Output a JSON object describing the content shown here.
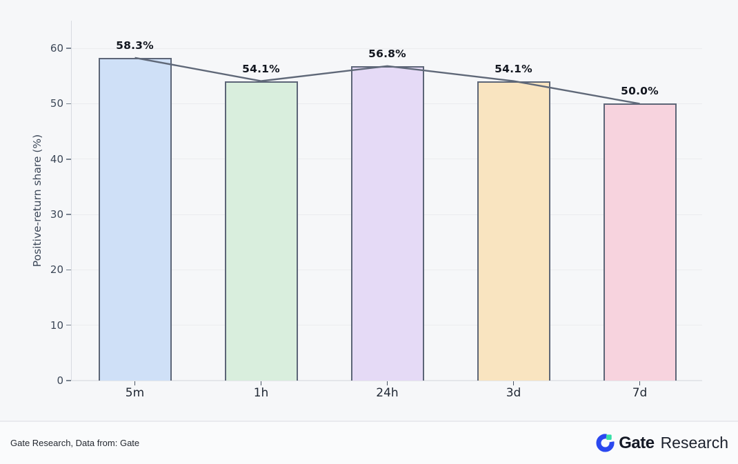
{
  "chart_data": {
    "type": "bar",
    "categories": [
      "5m",
      "1h",
      "24h",
      "3d",
      "7d"
    ],
    "values": [
      58.3,
      54.1,
      56.8,
      54.1,
      50.0
    ],
    "value_labels": [
      "58.3%",
      "54.1%",
      "56.8%",
      "54.1%",
      "50.0%"
    ],
    "series": [
      {
        "name": "positive-return share bars",
        "type": "bar",
        "values": [
          58.3,
          54.1,
          56.8,
          54.1,
          50.0
        ]
      },
      {
        "name": "trend line",
        "type": "line",
        "values": [
          58.3,
          54.1,
          56.8,
          54.1,
          50.0
        ]
      }
    ],
    "title": "",
    "xlabel": "",
    "ylabel": "Positive-return share (%)",
    "ylim": [
      0,
      65
    ],
    "yticks": [
      0,
      10,
      20,
      30,
      40,
      50,
      60
    ],
    "grid": true,
    "legend": "none",
    "background_color": "#f6f7f9",
    "bar_fill_colors": [
      "#cfe0f7",
      "#d9eedd",
      "#e5daf6",
      "#f9e4c0",
      "#f7d3de"
    ],
    "bar_edge_color": "#5c6577",
    "line_color": "#5f6878"
  },
  "footer": {
    "source_text": "Gate Research, Data from: Gate",
    "logo_brand": "Gate",
    "logo_suffix": "Research",
    "logo_blue": "#2b48ef",
    "logo_green": "#36e0a7"
  }
}
